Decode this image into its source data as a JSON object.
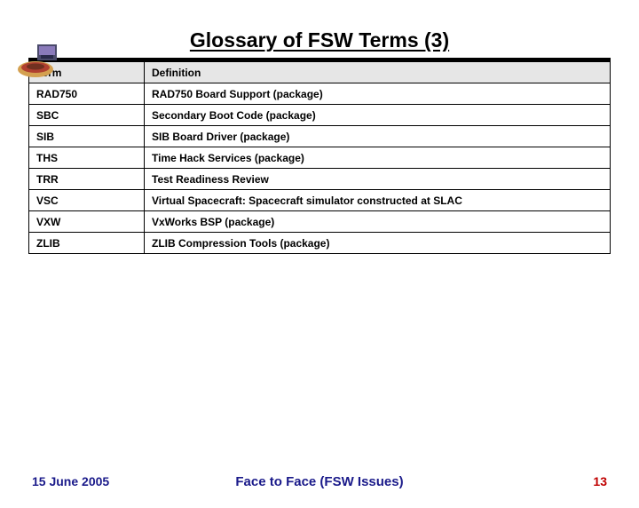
{
  "title": "Glossary of FSW Terms (3)",
  "table": {
    "header": {
      "term": "Term",
      "definition": "Definition"
    },
    "header_bg": "#e6e6e6",
    "border_color": "#000000",
    "font_size": 12,
    "rows": [
      {
        "term": "RAD750",
        "definition": "RAD750 Board Support (package)"
      },
      {
        "term": "SBC",
        "definition": "Secondary Boot Code (package)"
      },
      {
        "term": "SIB",
        "definition": "SIB Board Driver (package)"
      },
      {
        "term": "THS",
        "definition": "Time Hack Services (package)"
      },
      {
        "term": "TRR",
        "definition": "Test Readiness Review"
      },
      {
        "term": "VSC",
        "definition": "Virtual Spacecraft: Spacecraft simulator constructed at SLAC"
      },
      {
        "term": "VXW",
        "definition": "VxWorks BSP (package)"
      },
      {
        "term": "ZLIB",
        "definition": "ZLIB Compression Tools (package)"
      }
    ]
  },
  "footer": {
    "date": "15 June 2005",
    "center": "Face to Face (FSW Issues)",
    "page": "13",
    "date_color": "#1a1a8a",
    "center_color": "#1a1a8a",
    "page_color": "#c00000"
  },
  "colors": {
    "background": "#ffffff",
    "rule": "#000000"
  }
}
